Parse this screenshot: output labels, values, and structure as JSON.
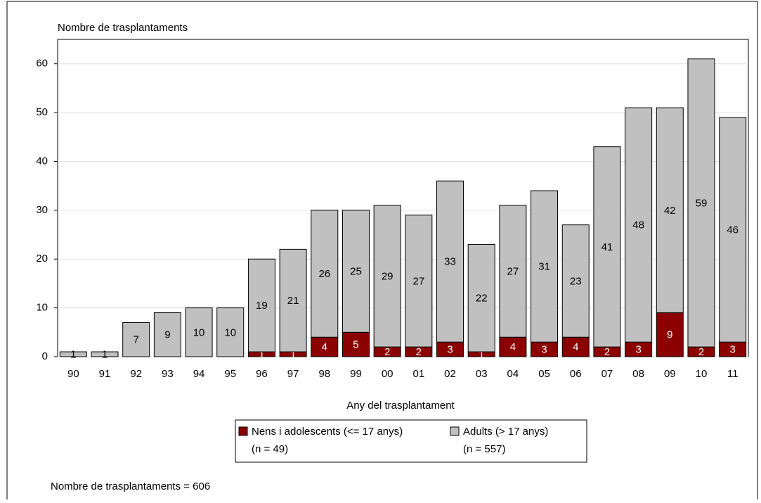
{
  "chart_data": {
    "type": "stacked_bar",
    "y_axis_title": "Nombre de trasplantaments",
    "x_axis_title": "Any del trasplantament",
    "footnote": "Nombre de trasplantaments = 606",
    "categories": [
      "90",
      "91",
      "92",
      "93",
      "94",
      "95",
      "96",
      "97",
      "98",
      "99",
      "00",
      "01",
      "02",
      "03",
      "04",
      "05",
      "06",
      "07",
      "08",
      "09",
      "10",
      "11"
    ],
    "series": [
      {
        "name": "Nens i adolescents (<= 17 anys)",
        "count_label": "(n = 49)",
        "color": "#8b0000",
        "values": [
          0,
          0,
          0,
          0,
          0,
          0,
          1,
          1,
          4,
          5,
          2,
          2,
          3,
          1,
          4,
          3,
          4,
          2,
          3,
          9,
          2,
          3
        ]
      },
      {
        "name": "Adults (> 17 anys)",
        "count_label": "(n = 557)",
        "color": "#c0c0c0",
        "values": [
          1,
          1,
          7,
          9,
          10,
          10,
          19,
          21,
          26,
          25,
          29,
          27,
          33,
          22,
          27,
          31,
          23,
          41,
          48,
          42,
          59,
          46
        ]
      }
    ],
    "ylim": [
      0,
      65
    ],
    "yticks": [
      0,
      10,
      20,
      30,
      40,
      50,
      60
    ],
    "grid": true
  }
}
